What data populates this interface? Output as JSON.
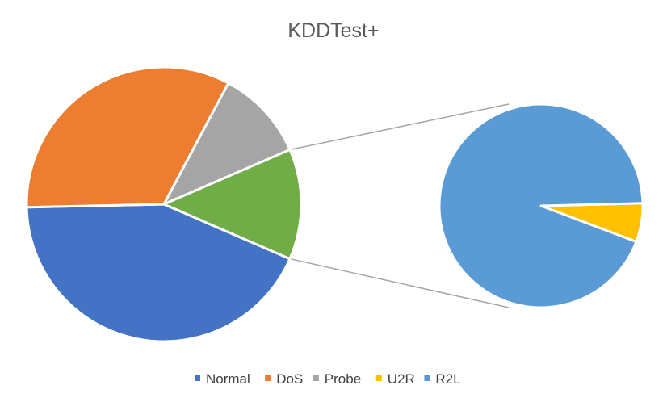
{
  "chart_data": {
    "type": "pie",
    "subtype": "pie-of-pie",
    "title": "KDDTest+",
    "categories": [
      "Normal",
      "DoS",
      "Probe",
      "U2R",
      "R2L"
    ],
    "values": [
      43.1,
      33.1,
      10.7,
      0.8,
      12.2
    ],
    "secondary_categories": [
      "U2R",
      "R2L"
    ],
    "colors": [
      "#4472c4",
      "#ed7d31",
      "#a5a5a5",
      "#ffc000",
      "#5b9bd5"
    ],
    "other_slice_color": "#70ad47",
    "legend": "bottom"
  }
}
